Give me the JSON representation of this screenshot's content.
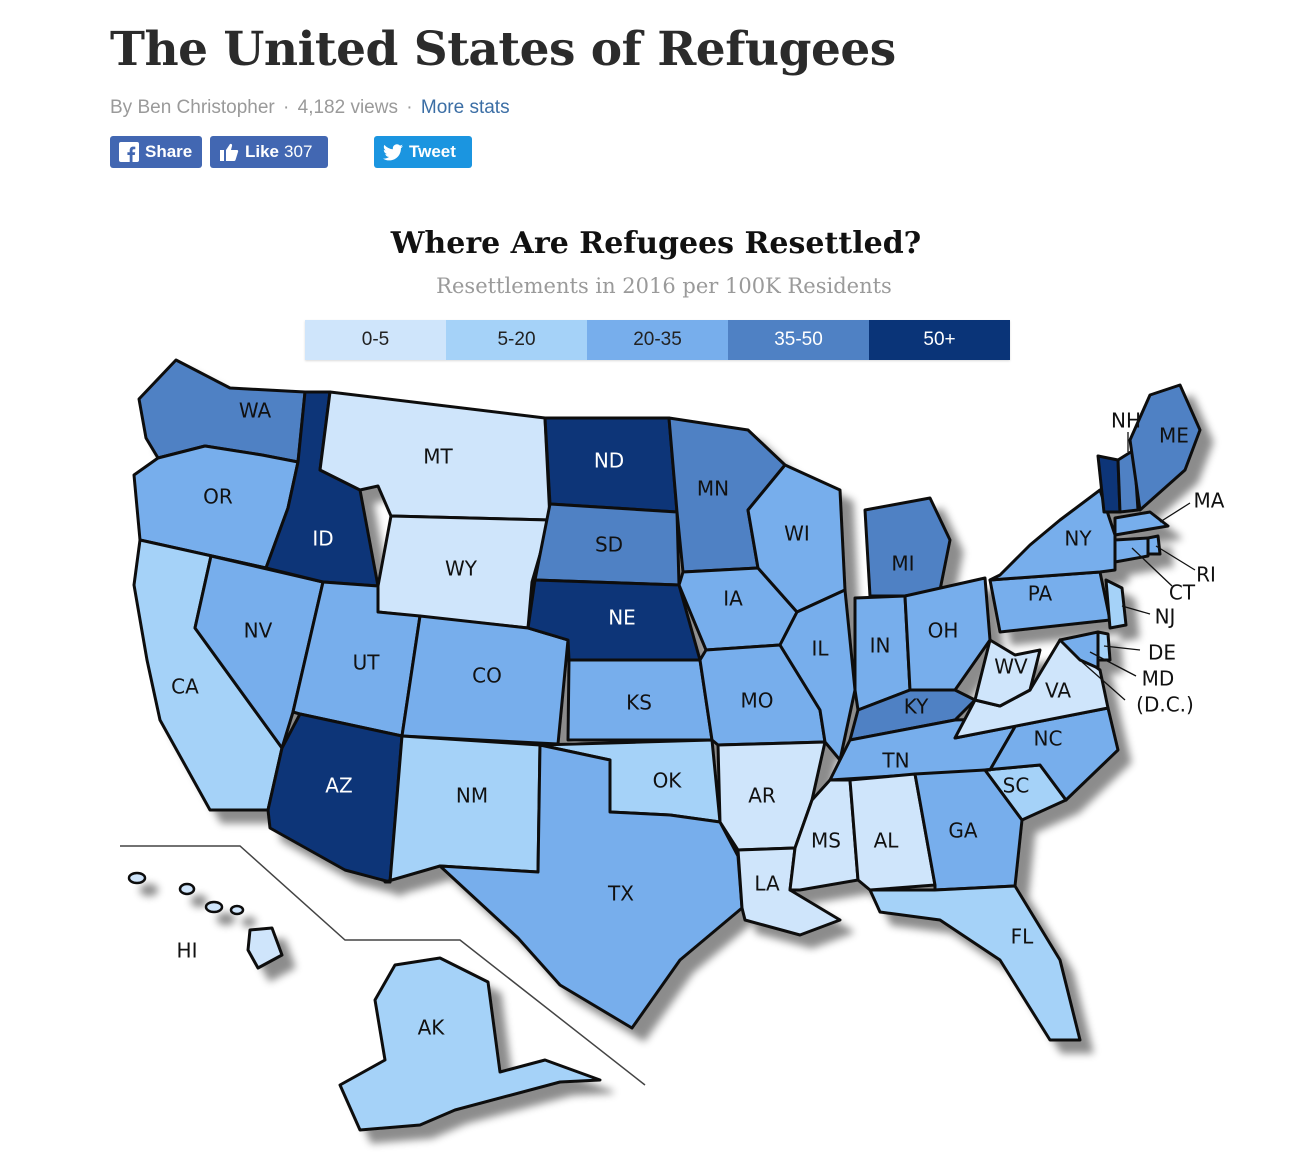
{
  "article": {
    "title": "The United States of Refugees",
    "author": "By Ben Christopher",
    "views": "4,182 views",
    "more_stats": "More stats",
    "separator": "·"
  },
  "social": {
    "share_label": "Share",
    "like_label": "Like",
    "like_count": "307",
    "tweet_label": "Tweet"
  },
  "map": {
    "title": "Where Are Refugees Resettled?",
    "subtitle": "Resettlements in 2016 per 100K Residents",
    "legend": [
      {
        "label": "0-5",
        "color": "#cfe5fb"
      },
      {
        "label": "5-20",
        "color": "#a5d2f8"
      },
      {
        "label": "20-35",
        "color": "#77aeec"
      },
      {
        "label": "35-50",
        "color": "#4f81c4"
      },
      {
        "label": "50+",
        "color": "#0a3478"
      }
    ],
    "dc_label": "(D.C.)",
    "states": [
      {
        "abbr": "WA",
        "bin": 3
      },
      {
        "abbr": "OR",
        "bin": 2
      },
      {
        "abbr": "CA",
        "bin": 1
      },
      {
        "abbr": "NV",
        "bin": 2
      },
      {
        "abbr": "ID",
        "bin": 4
      },
      {
        "abbr": "MT",
        "bin": 0
      },
      {
        "abbr": "WY",
        "bin": 0
      },
      {
        "abbr": "UT",
        "bin": 2
      },
      {
        "abbr": "AZ",
        "bin": 4
      },
      {
        "abbr": "CO",
        "bin": 2
      },
      {
        "abbr": "NM",
        "bin": 1
      },
      {
        "abbr": "ND",
        "bin": 4
      },
      {
        "abbr": "SD",
        "bin": 3
      },
      {
        "abbr": "NE",
        "bin": 4
      },
      {
        "abbr": "KS",
        "bin": 2
      },
      {
        "abbr": "OK",
        "bin": 1
      },
      {
        "abbr": "TX",
        "bin": 2
      },
      {
        "abbr": "MN",
        "bin": 3
      },
      {
        "abbr": "IA",
        "bin": 2
      },
      {
        "abbr": "MO",
        "bin": 2
      },
      {
        "abbr": "AR",
        "bin": 0
      },
      {
        "abbr": "LA",
        "bin": 0
      },
      {
        "abbr": "WI",
        "bin": 2
      },
      {
        "abbr": "IL",
        "bin": 2
      },
      {
        "abbr": "MI",
        "bin": 3
      },
      {
        "abbr": "IN",
        "bin": 2
      },
      {
        "abbr": "OH",
        "bin": 2
      },
      {
        "abbr": "KY",
        "bin": 3
      },
      {
        "abbr": "TN",
        "bin": 2
      },
      {
        "abbr": "MS",
        "bin": 0
      },
      {
        "abbr": "AL",
        "bin": 0
      },
      {
        "abbr": "GA",
        "bin": 2
      },
      {
        "abbr": "FL",
        "bin": 1
      },
      {
        "abbr": "SC",
        "bin": 1
      },
      {
        "abbr": "NC",
        "bin": 2
      },
      {
        "abbr": "VA",
        "bin": 0
      },
      {
        "abbr": "WV",
        "bin": 0
      },
      {
        "abbr": "PA",
        "bin": 2
      },
      {
        "abbr": "NY",
        "bin": 2
      },
      {
        "abbr": "VT",
        "bin": 4
      },
      {
        "abbr": "NH",
        "bin": 3
      },
      {
        "abbr": "ME",
        "bin": 3
      },
      {
        "abbr": "MA",
        "bin": 2
      },
      {
        "abbr": "RI",
        "bin": 2
      },
      {
        "abbr": "CT",
        "bin": 2
      },
      {
        "abbr": "NJ",
        "bin": 1
      },
      {
        "abbr": "DE",
        "bin": 1
      },
      {
        "abbr": "MD",
        "bin": 2
      },
      {
        "abbr": "HI",
        "bin": 0
      },
      {
        "abbr": "AK",
        "bin": 1
      }
    ]
  }
}
